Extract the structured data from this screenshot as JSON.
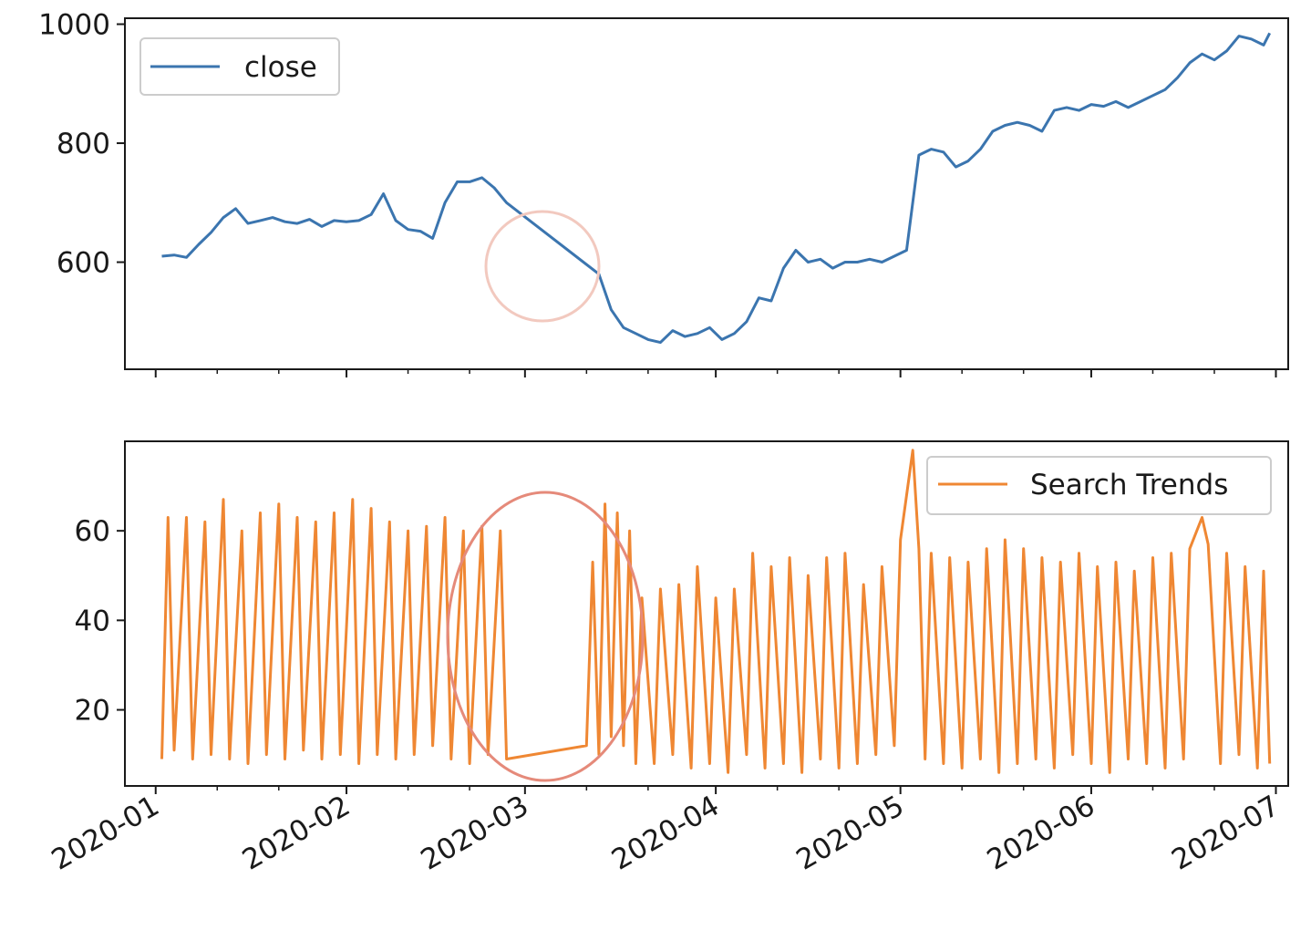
{
  "chart_data": [
    {
      "type": "line",
      "legend_location": "upper left",
      "grid": false,
      "x_range": [
        "2019-12-27",
        "2020-07-03"
      ],
      "ylim": [
        420,
        1010
      ],
      "y_ticks": [
        {
          "value": 600,
          "label": "600"
        },
        {
          "value": 800,
          "label": "800"
        },
        {
          "value": 1000,
          "label": "1000"
        }
      ],
      "series": [
        {
          "name": "close",
          "color": "#3b75af",
          "x": [
            "2020-01-02",
            "2020-01-04",
            "2020-01-06",
            "2020-01-08",
            "2020-01-10",
            "2020-01-12",
            "2020-01-14",
            "2020-01-16",
            "2020-01-18",
            "2020-01-20",
            "2020-01-22",
            "2020-01-24",
            "2020-01-26",
            "2020-01-28",
            "2020-01-30",
            "2020-02-01",
            "2020-02-03",
            "2020-02-05",
            "2020-02-07",
            "2020-02-09",
            "2020-02-11",
            "2020-02-13",
            "2020-02-15",
            "2020-02-17",
            "2020-02-19",
            "2020-02-21",
            "2020-02-23",
            "2020-02-25",
            "2020-02-27",
            "2020-03-13",
            "2020-03-15",
            "2020-03-17",
            "2020-03-19",
            "2020-03-21",
            "2020-03-23",
            "2020-03-25",
            "2020-03-27",
            "2020-03-29",
            "2020-03-31",
            "2020-04-02",
            "2020-04-04",
            "2020-04-06",
            "2020-04-08",
            "2020-04-10",
            "2020-04-12",
            "2020-04-14",
            "2020-04-16",
            "2020-04-18",
            "2020-04-20",
            "2020-04-22",
            "2020-04-24",
            "2020-04-26",
            "2020-04-28",
            "2020-04-30",
            "2020-05-02",
            "2020-05-04",
            "2020-05-06",
            "2020-05-08",
            "2020-05-10",
            "2020-05-12",
            "2020-05-14",
            "2020-05-16",
            "2020-05-18",
            "2020-05-20",
            "2020-05-22",
            "2020-05-24",
            "2020-05-26",
            "2020-05-28",
            "2020-05-30",
            "2020-06-01",
            "2020-06-03",
            "2020-06-05",
            "2020-06-07",
            "2020-06-09",
            "2020-06-11",
            "2020-06-13",
            "2020-06-15",
            "2020-06-17",
            "2020-06-19",
            "2020-06-21",
            "2020-06-23",
            "2020-06-25",
            "2020-06-27",
            "2020-06-29",
            "2020-06-30"
          ],
          "y": [
            610,
            612,
            608,
            630,
            650,
            675,
            690,
            665,
            670,
            675,
            668,
            665,
            672,
            660,
            670,
            668,
            670,
            680,
            715,
            670,
            655,
            652,
            640,
            700,
            735,
            735,
            742,
            725,
            700,
            580,
            520,
            490,
            480,
            470,
            465,
            485,
            475,
            480,
            490,
            470,
            480,
            500,
            540,
            535,
            590,
            620,
            600,
            605,
            590,
            600,
            600,
            605,
            600,
            610,
            620,
            780,
            790,
            785,
            760,
            770,
            790,
            820,
            830,
            835,
            830,
            820,
            855,
            860,
            855,
            865,
            862,
            870,
            860,
            870,
            880,
            890,
            910,
            935,
            950,
            940,
            955,
            980,
            975,
            965,
            985
          ]
        }
      ]
    },
    {
      "type": "line",
      "legend_location": "upper right",
      "grid": false,
      "x_range": [
        "2019-12-27",
        "2020-07-03"
      ],
      "ylim": [
        3,
        80
      ],
      "y_ticks": [
        {
          "value": 20,
          "label": "20"
        },
        {
          "value": 40,
          "label": "40"
        },
        {
          "value": 60,
          "label": "60"
        }
      ],
      "x_ticks": [
        {
          "value": "2020-01-01",
          "label": "2020-01"
        },
        {
          "value": "2020-02-01",
          "label": "2020-02"
        },
        {
          "value": "2020-03-01",
          "label": "2020-03"
        },
        {
          "value": "2020-04-01",
          "label": "2020-04"
        },
        {
          "value": "2020-05-01",
          "label": "2020-05"
        },
        {
          "value": "2020-06-01",
          "label": "2020-06"
        },
        {
          "value": "2020-07-01",
          "label": "2020-07"
        }
      ],
      "series": [
        {
          "name": "Search Trends",
          "color": "#ef8733",
          "x": [
            "2020-01-02",
            "2020-01-03",
            "2020-01-04",
            "2020-01-06",
            "2020-01-07",
            "2020-01-09",
            "2020-01-10",
            "2020-01-12",
            "2020-01-13",
            "2020-01-15",
            "2020-01-16",
            "2020-01-18",
            "2020-01-19",
            "2020-01-21",
            "2020-01-22",
            "2020-01-24",
            "2020-01-25",
            "2020-01-27",
            "2020-01-28",
            "2020-01-30",
            "2020-01-31",
            "2020-02-02",
            "2020-02-03",
            "2020-02-05",
            "2020-02-06",
            "2020-02-08",
            "2020-02-09",
            "2020-02-11",
            "2020-02-12",
            "2020-02-14",
            "2020-02-15",
            "2020-02-17",
            "2020-02-18",
            "2020-02-20",
            "2020-02-21",
            "2020-02-23",
            "2020-02-24",
            "2020-02-26",
            "2020-02-27",
            "2020-03-11",
            "2020-03-12",
            "2020-03-13",
            "2020-03-14",
            "2020-03-15",
            "2020-03-16",
            "2020-03-17",
            "2020-03-18",
            "2020-03-19",
            "2020-03-20",
            "2020-03-22",
            "2020-03-23",
            "2020-03-25",
            "2020-03-26",
            "2020-03-28",
            "2020-03-29",
            "2020-03-31",
            "2020-04-01",
            "2020-04-03",
            "2020-04-04",
            "2020-04-06",
            "2020-04-07",
            "2020-04-09",
            "2020-04-10",
            "2020-04-12",
            "2020-04-13",
            "2020-04-15",
            "2020-04-16",
            "2020-04-18",
            "2020-04-19",
            "2020-04-21",
            "2020-04-22",
            "2020-04-24",
            "2020-04-25",
            "2020-04-27",
            "2020-04-28",
            "2020-04-30",
            "2020-05-01",
            "2020-05-03",
            "2020-05-04",
            "2020-05-05",
            "2020-05-06",
            "2020-05-08",
            "2020-05-09",
            "2020-05-11",
            "2020-05-12",
            "2020-05-14",
            "2020-05-15",
            "2020-05-17",
            "2020-05-18",
            "2020-05-20",
            "2020-05-21",
            "2020-05-23",
            "2020-05-24",
            "2020-05-26",
            "2020-05-27",
            "2020-05-29",
            "2020-05-30",
            "2020-06-01",
            "2020-06-02",
            "2020-06-04",
            "2020-06-05",
            "2020-06-07",
            "2020-06-08",
            "2020-06-10",
            "2020-06-11",
            "2020-06-13",
            "2020-06-14",
            "2020-06-16",
            "2020-06-17",
            "2020-06-19",
            "2020-06-20",
            "2020-06-22",
            "2020-06-23",
            "2020-06-25",
            "2020-06-26",
            "2020-06-28",
            "2020-06-29",
            "2020-06-30"
          ],
          "y": [
            9,
            63,
            11,
            63,
            9,
            62,
            10,
            67,
            9,
            60,
            8,
            64,
            10,
            66,
            9,
            63,
            11,
            62,
            9,
            64,
            10,
            67,
            8,
            65,
            10,
            62,
            9,
            60,
            10,
            61,
            12,
            63,
            9,
            60,
            8,
            61,
            10,
            60,
            9,
            12,
            53,
            10,
            66,
            14,
            64,
            12,
            60,
            8,
            45,
            8,
            47,
            10,
            48,
            7,
            52,
            8,
            45,
            6,
            47,
            10,
            55,
            7,
            52,
            8,
            54,
            6,
            50,
            9,
            54,
            7,
            55,
            8,
            48,
            10,
            52,
            12,
            58,
            78,
            56,
            9,
            55,
            8,
            54,
            7,
            53,
            9,
            56,
            6,
            58,
            8,
            56,
            9,
            54,
            7,
            53,
            10,
            55,
            8,
            52,
            6,
            53,
            9,
            51,
            8,
            54,
            7,
            55,
            9,
            56,
            63,
            57,
            8,
            55,
            10,
            52,
            7,
            51,
            8
          ]
        }
      ]
    }
  ]
}
